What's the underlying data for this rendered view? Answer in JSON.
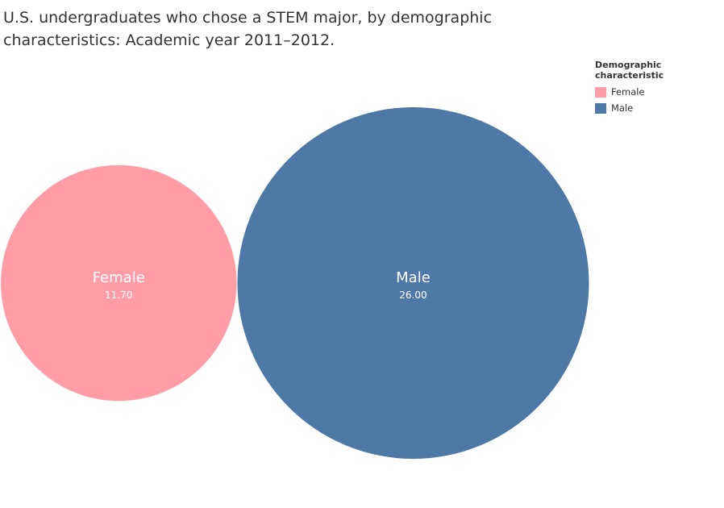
{
  "chart_data": {
    "type": "bubble",
    "title": "U.S. undergraduates who chose a STEM major, by demographic characteristics: Academic year 2011–2012.",
    "legend": {
      "title": "Demographic characteristic",
      "placement": "top-right",
      "entries": [
        {
          "label": "Female",
          "color": "#ff9da7"
        },
        {
          "label": "Male",
          "color": "#4e79a7"
        }
      ]
    },
    "series": [
      {
        "name": "Female",
        "value": 11.7,
        "value_label": "11.70",
        "color": "#ff9da7"
      },
      {
        "name": "Male",
        "value": 26.0,
        "value_label": "26.00",
        "color": "#4e79a7"
      }
    ]
  }
}
